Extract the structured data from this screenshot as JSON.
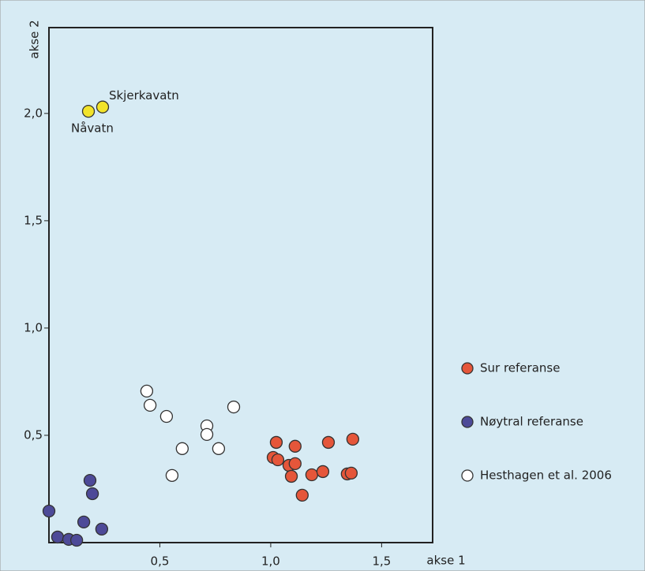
{
  "chart_data": {
    "type": "scatter",
    "x_label": "akse 1",
    "y_label": "akse 2",
    "xlim": [
      0,
      1.73
    ],
    "ylim": [
      0,
      2.4
    ],
    "xticks": [
      {
        "value": 0.5,
        "label": "0,5"
      },
      {
        "value": 1.0,
        "label": "1,0"
      },
      {
        "value": 1.5,
        "label": "1,5"
      }
    ],
    "yticks": [
      {
        "value": 0.5,
        "label": "0,5"
      },
      {
        "value": 1.0,
        "label": "1,0"
      },
      {
        "value": 1.5,
        "label": "1,5"
      },
      {
        "value": 2.0,
        "label": "2,0"
      }
    ],
    "legend": "right",
    "series": [
      {
        "color": "#f2e32a",
        "labels": [
          "Nåvatn",
          "Skjerkavatn"
        ],
        "x": [
          0.178,
          0.242
        ],
        "y": [
          2.01,
          2.03
        ]
      },
      {
        "name": "Sur referanse",
        "color": "#e5563a",
        "x": [
          1.025,
          1.011,
          1.032,
          1.082,
          1.11,
          1.11,
          1.093,
          1.142,
          1.185,
          1.235,
          1.26,
          1.345,
          1.363,
          1.37
        ],
        "y": [
          0.467,
          0.397,
          0.386,
          0.36,
          0.368,
          0.449,
          0.309,
          0.221,
          0.316,
          0.331,
          0.467,
          0.32,
          0.324,
          0.482
        ]
      },
      {
        "name": "Nøytral referanse",
        "color": "#4d4a98",
        "x": [
          0,
          0.039,
          0.089,
          0.125,
          0.157,
          0.185,
          0.196,
          0.238
        ],
        "y": [
          0.147,
          0.026,
          0.015,
          0.011,
          0.096,
          0.29,
          0.228,
          0.063
        ]
      },
      {
        "name": "Hesthagen et al. 2006",
        "color": "#ffffff",
        "x": [
          0.441,
          0.456,
          0.53,
          0.555,
          0.601,
          0.712,
          0.712,
          0.765,
          0.833
        ],
        "y": [
          0.706,
          0.64,
          0.588,
          0.313,
          0.438,
          0.544,
          0.504,
          0.438,
          0.632
        ]
      }
    ]
  }
}
